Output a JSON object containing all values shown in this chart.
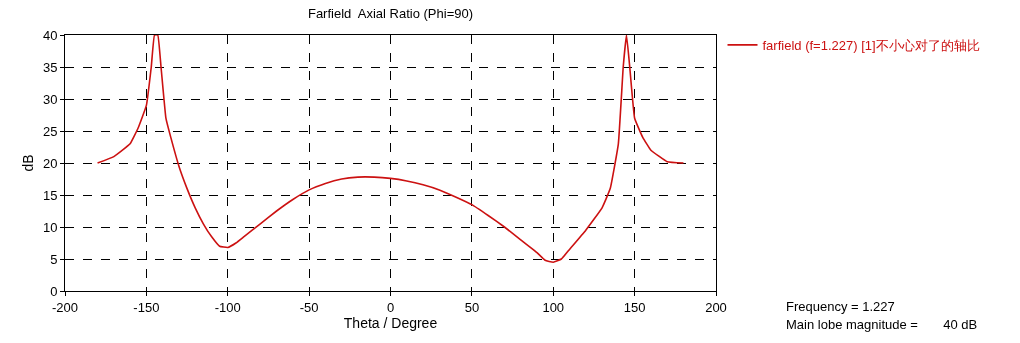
{
  "chart_data": {
    "type": "line",
    "title": "Farfield  Axial Ratio (Phi=90)",
    "xlabel": "Theta / Degree",
    "ylabel": "dB",
    "x": [
      -180,
      -170,
      -160,
      -155,
      -150,
      -147,
      -145,
      -143,
      -141,
      -138,
      -135,
      -130,
      -125,
      -120,
      -115,
      -110,
      -105,
      -100,
      -95,
      -90,
      -80,
      -70,
      -60,
      -50,
      -40,
      -30,
      -20,
      -10,
      0,
      10,
      20,
      30,
      40,
      50,
      60,
      70,
      80,
      90,
      95,
      100,
      105,
      110,
      120,
      130,
      135,
      140,
      143,
      145,
      147,
      150,
      155,
      160,
      170,
      180
    ],
    "series": [
      {
        "name": "farfield (f=1.227) [1]不小心对了的轴比",
        "color": "#cc1111",
        "values": [
          20,
          21,
          23,
          25.5,
          29,
          35,
          40,
          40,
          35,
          27,
          24,
          19.5,
          16,
          13,
          10.5,
          8.5,
          7,
          6.8,
          7.5,
          8.5,
          10.5,
          12.5,
          14.3,
          15.8,
          16.8,
          17.5,
          17.8,
          17.8,
          17.6,
          17.2,
          16.6,
          15.8,
          14.7,
          13.5,
          11.8,
          10,
          8,
          6,
          4.8,
          4.5,
          5,
          6.5,
          9.5,
          13,
          16,
          23,
          35,
          40,
          35,
          27,
          24,
          22,
          20.2,
          20
        ]
      }
    ],
    "xlim": [
      -200,
      200
    ],
    "xticks": [
      -200,
      -150,
      -100,
      -50,
      0,
      50,
      100,
      150,
      200
    ],
    "ylim": [
      0,
      40
    ],
    "yticks": [
      0,
      5,
      10,
      15,
      20,
      25,
      30,
      35,
      40
    ],
    "grid": true,
    "legend": "top right",
    "marker": "none",
    "line_style": "solid",
    "annotations": [
      "Frequency = 1.227",
      "Main lobe magnitude =       40 dB"
    ]
  }
}
